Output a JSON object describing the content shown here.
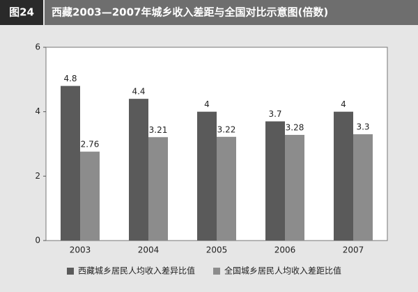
{
  "chart_data": {
    "type": "bar",
    "figure_label": "图24",
    "title": "西藏2003—2007年城乡收入差距与全国对比示意图(倍数)",
    "categories": [
      "2003",
      "2004",
      "2005",
      "2006",
      "2007"
    ],
    "series": [
      {
        "name": "西藏城乡居民人均收入差异比值",
        "color": "#5a5a5a",
        "values": [
          4.8,
          4.4,
          4,
          3.7,
          4
        ]
      },
      {
        "name": "全国城乡居民人均收入差距比值",
        "color": "#8c8c8c",
        "values": [
          2.76,
          3.21,
          3.22,
          3.28,
          3.3
        ]
      }
    ],
    "ylim": [
      0,
      6
    ],
    "yticks": [
      0,
      2,
      4,
      6
    ]
  }
}
